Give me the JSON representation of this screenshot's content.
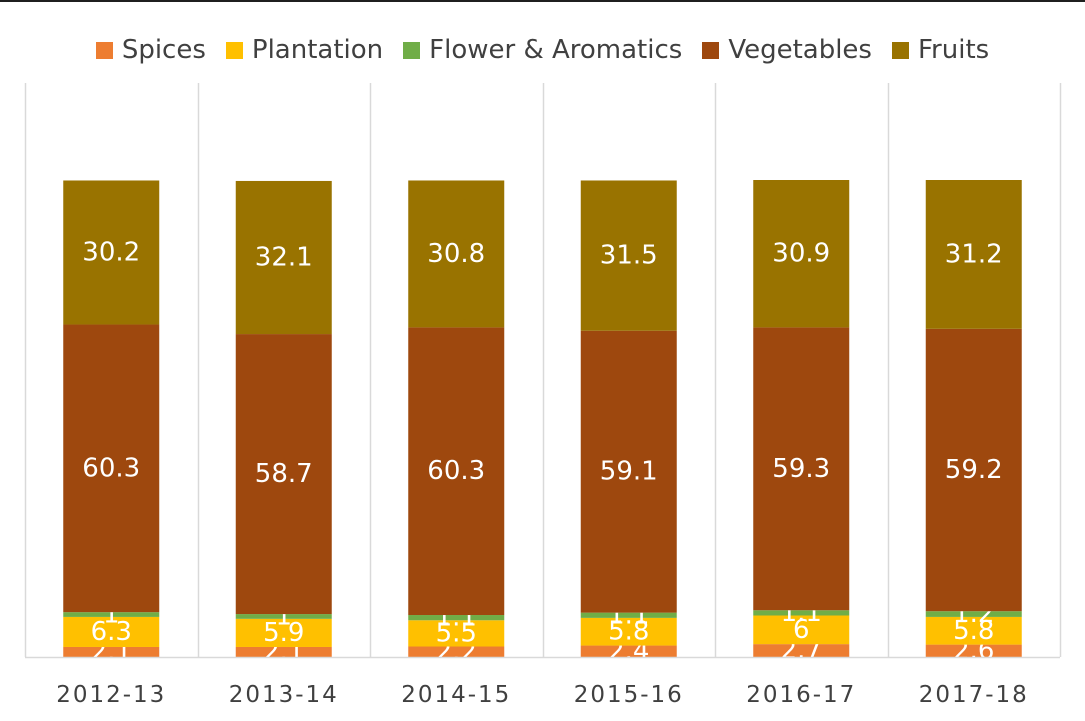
{
  "chart_data": {
    "type": "bar",
    "stacked": true,
    "categories": [
      "2012-13",
      "2013-14",
      "2014-15",
      "2015-16",
      "2016-17",
      "2017-18"
    ],
    "series": [
      {
        "name": "Spices",
        "color": "#ed7d31",
        "values": [
          2.1,
          2.1,
          2.2,
          2.4,
          2.7,
          2.6
        ]
      },
      {
        "name": "Plantation",
        "color": "#ffc000",
        "values": [
          6.3,
          5.9,
          5.5,
          5.8,
          6,
          5.8
        ]
      },
      {
        "name": "Flower & Aromatics",
        "color": "#70ad47",
        "values": [
          1,
          1,
          1.1,
          1.1,
          1.1,
          1.2
        ]
      },
      {
        "name": "Vegetables",
        "color": "#9e480e",
        "values": [
          60.3,
          58.7,
          60.3,
          59.1,
          59.3,
          59.2
        ]
      },
      {
        "name": "Fruits",
        "color": "#997300",
        "values": [
          30.2,
          32.1,
          30.8,
          31.5,
          30.9,
          31.2
        ]
      }
    ],
    "legend_position": "top",
    "grid": "vertical category separators",
    "data_labels": true
  }
}
